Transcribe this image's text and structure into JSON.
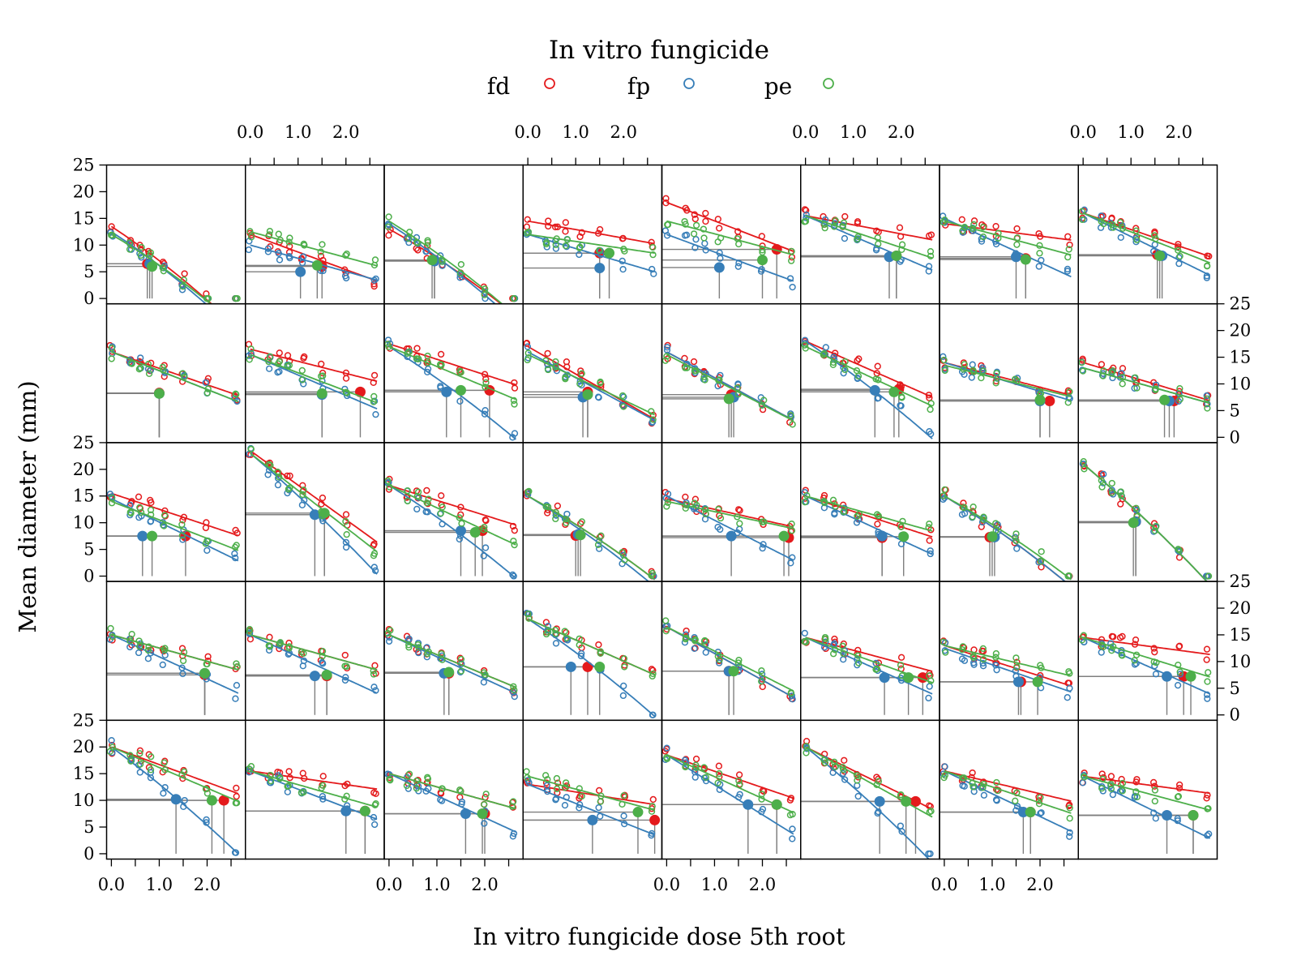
{
  "chart_data": {
    "type": "scatter",
    "layout": "trellis",
    "rows": 5,
    "cols": 8,
    "legend": {
      "title": "In vitro fungicide",
      "placement": "top",
      "entries": [
        {
          "name": "fd",
          "color": "#E41A1C"
        },
        {
          "name": "fp",
          "color": "#377EB8"
        },
        {
          "name": "pe",
          "color": "#4DAF4A"
        }
      ]
    },
    "xlabel": "In vitro fungicide dose 5th root",
    "ylabel": "Mean diameter (mm)",
    "xlim": [
      -0.1,
      2.8
    ],
    "ylim": [
      -1,
      25
    ],
    "x_ticks": [
      0,
      0.5,
      1,
      1.5,
      2,
      2.5
    ],
    "x_tick_labels": [
      "0.0",
      "1.0",
      "2.0"
    ],
    "y_ticks": [
      0,
      5,
      10,
      15,
      20,
      25
    ],
    "y_tick_labels": [
      "0",
      "5",
      "10",
      "15",
      "20",
      "25"
    ],
    "dose_levels": [
      0,
      0.4,
      0.6,
      0.8,
      1.1,
      1.5,
      2.0,
      2.6
    ],
    "panels": [
      {
        "ec": [
          [
            0.75,
            6.5
          ],
          [
            0.8,
            6.5
          ],
          [
            0.85,
            6.0
          ]
        ],
        "curves": [
          [
            13.5,
            -0.8
          ],
          [
            12.5,
            -0.85
          ],
          [
            12.0,
            -0.8
          ]
        ]
      },
      {
        "ec": [
          [
            1.5,
            6.0
          ],
          [
            1.05,
            5.0
          ],
          [
            1.4,
            6.2
          ]
        ],
        "curves": [
          [
            12.0,
            -0.5
          ],
          [
            10.0,
            -0.45
          ],
          [
            12.5,
            -0.35
          ]
        ]
      },
      {
        "ec": [
          [
            0.95,
            7.2
          ],
          [
            0.95,
            7.0
          ],
          [
            0.9,
            7.2
          ]
        ],
        "curves": [
          [
            13.0,
            -0.7
          ],
          [
            14.0,
            -0.75
          ],
          [
            14.5,
            -0.7
          ]
        ]
      },
      {
        "ec": [
          [
            1.5,
            8.5
          ],
          [
            1.5,
            5.7
          ],
          [
            1.7,
            8.5
          ]
        ],
        "curves": [
          [
            14.5,
            -0.2
          ],
          [
            12.0,
            -0.4
          ],
          [
            12.0,
            -0.2
          ]
        ]
      },
      {
        "ec": [
          [
            2.3,
            9.2
          ],
          [
            1.1,
            5.8
          ],
          [
            2.0,
            7.2
          ]
        ],
        "curves": [
          [
            18.0,
            -0.35
          ],
          [
            12.0,
            -0.5
          ],
          [
            14.5,
            -0.3
          ]
        ]
      },
      {
        "ec": [
          [
            1.9,
            8.0
          ],
          [
            1.75,
            7.8
          ],
          [
            1.9,
            8.0
          ]
        ],
        "curves": [
          [
            15.5,
            -0.2
          ],
          [
            15.5,
            -0.45
          ],
          [
            15.5,
            -0.35
          ]
        ]
      },
      {
        "ec": [
          [
            1.7,
            7.5
          ],
          [
            1.5,
            7.8
          ],
          [
            1.7,
            7.3
          ]
        ],
        "curves": [
          [
            14.0,
            -0.15
          ],
          [
            15.0,
            -0.5
          ],
          [
            14.5,
            -0.3
          ]
        ]
      },
      {
        "ec": [
          [
            1.55,
            8.2
          ],
          [
            1.65,
            8.0
          ],
          [
            1.6,
            8.0
          ]
        ],
        "curves": [
          [
            16.0,
            -0.35
          ],
          [
            16.0,
            -0.5
          ],
          [
            16.0,
            -0.4
          ]
        ]
      },
      {
        "ec": [
          [
            1.0,
            8.3
          ],
          [
            1.0,
            8.2
          ],
          [
            1.0,
            8.2
          ]
        ],
        "curves": [
          [
            16.0,
            -0.35
          ],
          [
            16.0,
            -0.4
          ],
          [
            16.0,
            -0.4
          ]
        ]
      },
      {
        "ec": [
          [
            2.3,
            8.5
          ],
          [
            1.5,
            8.0
          ],
          [
            1.5,
            8.2
          ]
        ],
        "curves": [
          [
            16.5,
            -0.25
          ],
          [
            15.5,
            -0.45
          ],
          [
            15.5,
            -0.4
          ]
        ]
      },
      {
        "ec": [
          [
            2.1,
            8.8
          ],
          [
            1.2,
            8.5
          ],
          [
            1.5,
            8.8
          ]
        ],
        "curves": [
          [
            17.5,
            -0.3
          ],
          [
            17.0,
            -0.6
          ],
          [
            17.0,
            -0.4
          ]
        ]
      },
      {
        "ec": [
          [
            1.25,
            8.5
          ],
          [
            1.15,
            7.5
          ],
          [
            1.25,
            8.0
          ]
        ],
        "curves": [
          [
            17.0,
            -0.55
          ],
          [
            16.0,
            -0.55
          ],
          [
            15.5,
            -0.5
          ]
        ]
      },
      {
        "ec": [
          [
            1.35,
            8.0
          ],
          [
            1.4,
            7.5
          ],
          [
            1.3,
            7.2
          ]
        ],
        "curves": [
          [
            16.0,
            -0.55
          ],
          [
            16.0,
            -0.55
          ],
          [
            15.5,
            -0.55
          ]
        ]
      },
      {
        "ec": [
          [
            1.95,
            9.0
          ],
          [
            1.45,
            8.8
          ],
          [
            1.85,
            8.5
          ]
        ],
        "curves": [
          [
            18.0,
            -0.4
          ],
          [
            18.0,
            -0.6
          ],
          [
            17.0,
            -0.45
          ]
        ]
      },
      {
        "ec": [
          [
            2.2,
            6.8
          ],
          [
            2.0,
            6.8
          ],
          [
            2.0,
            7.0
          ]
        ],
        "curves": [
          [
            14.0,
            -0.3
          ],
          [
            14.0,
            -0.35
          ],
          [
            13.5,
            -0.3
          ]
        ]
      },
      {
        "ec": [
          [
            1.9,
            6.8
          ],
          [
            1.8,
            6.8
          ],
          [
            1.7,
            7.0
          ]
        ],
        "curves": [
          [
            14.0,
            -0.35
          ],
          [
            13.0,
            -0.35
          ],
          [
            13.0,
            -0.35
          ]
        ]
      },
      {
        "ec": [
          [
            1.55,
            7.5
          ],
          [
            0.65,
            7.5
          ],
          [
            0.85,
            7.5
          ]
        ],
        "curves": [
          [
            15.5,
            -0.35
          ],
          [
            14.5,
            -0.55
          ],
          [
            14.0,
            -0.45
          ]
        ]
      },
      {
        "ec": [
          [
            1.55,
            11.5
          ],
          [
            1.35,
            11.5
          ],
          [
            1.55,
            11.8
          ]
        ],
        "curves": [
          [
            23.5,
            -0.5
          ],
          [
            23.0,
            -0.6
          ],
          [
            23.0,
            -0.55
          ]
        ]
      },
      {
        "ec": [
          [
            1.95,
            8.5
          ],
          [
            1.5,
            8.5
          ],
          [
            1.8,
            8.2
          ]
        ],
        "curves": [
          [
            17.0,
            -0.3
          ],
          [
            17.0,
            -0.6
          ],
          [
            17.0,
            -0.45
          ]
        ]
      },
      {
        "ec": [
          [
            1.0,
            7.6
          ],
          [
            1.05,
            7.8
          ],
          [
            1.1,
            7.7
          ]
        ],
        "curves": [
          [
            15.0,
            -0.6
          ],
          [
            15.0,
            -0.65
          ],
          [
            15.0,
            -0.6
          ]
        ]
      },
      {
        "ec": [
          [
            2.55,
            7.2
          ],
          [
            1.35,
            7.5
          ],
          [
            2.45,
            7.5
          ]
        ],
        "curves": [
          [
            14.5,
            -0.25
          ],
          [
            15.0,
            -0.55
          ],
          [
            14.0,
            -0.25
          ]
        ]
      },
      {
        "ec": [
          [
            1.6,
            7.2
          ],
          [
            1.6,
            7.5
          ],
          [
            2.05,
            7.4
          ]
        ],
        "curves": [
          [
            15.0,
            -0.35
          ],
          [
            15.0,
            -0.5
          ],
          [
            15.0,
            -0.3
          ]
        ]
      },
      {
        "ec": [
          [
            0.95,
            7.3
          ],
          [
            1.05,
            7.3
          ],
          [
            1.0,
            7.4
          ]
        ],
        "curves": [
          [
            15.0,
            -0.65
          ],
          [
            15.0,
            -0.65
          ],
          [
            15.0,
            -0.6
          ]
        ]
      },
      {
        "ec": [
          [
            1.1,
            10.2
          ],
          [
            1.1,
            10.2
          ],
          [
            1.05,
            10.0
          ]
        ],
        "curves": [
          [
            21.0,
            -0.65
          ],
          [
            21.0,
            -0.65
          ],
          [
            21.0,
            -0.65
          ]
        ]
      },
      {
        "ec": [
          [
            1.95,
            7.5
          ],
          [
            1.95,
            7.8
          ],
          [
            1.95,
            7.8
          ]
        ],
        "curves": [
          [
            15.0,
            -0.3
          ],
          [
            15.0,
            -0.5
          ],
          [
            15.0,
            -0.3
          ]
        ]
      },
      {
        "ec": [
          [
            1.6,
            7.3
          ],
          [
            1.35,
            7.3
          ],
          [
            1.6,
            7.5
          ]
        ],
        "curves": [
          [
            15.0,
            -0.3
          ],
          [
            15.0,
            -0.5
          ],
          [
            15.0,
            -0.3
          ]
        ]
      },
      {
        "ec": [
          [
            1.25,
            7.8
          ],
          [
            1.15,
            7.8
          ],
          [
            1.25,
            8.0
          ]
        ],
        "curves": [
          [
            15.0,
            -0.45
          ],
          [
            15.0,
            -0.5
          ],
          [
            15.0,
            -0.45
          ]
        ]
      },
      {
        "ec": [
          [
            1.25,
            9.0
          ],
          [
            0.9,
            9.0
          ],
          [
            1.5,
            9.0
          ]
        ],
        "curves": [
          [
            18.0,
            -0.4
          ],
          [
            18.0,
            -0.6
          ],
          [
            18.0,
            -0.4
          ]
        ]
      },
      {
        "ec": [
          [
            1.3,
            8.2
          ],
          [
            1.3,
            8.2
          ],
          [
            1.4,
            8.2
          ]
        ],
        "curves": [
          [
            16.5,
            -0.55
          ],
          [
            16.5,
            -0.55
          ],
          [
            16.5,
            -0.5
          ]
        ]
      },
      {
        "ec": [
          [
            2.45,
            7.0
          ],
          [
            1.65,
            7.0
          ],
          [
            2.15,
            7.0
          ]
        ],
        "curves": [
          [
            14.5,
            -0.3
          ],
          [
            14.5,
            -0.5
          ],
          [
            14.5,
            -0.4
          ]
        ]
      },
      {
        "ec": [
          [
            1.6,
            6.2
          ],
          [
            1.55,
            6.2
          ],
          [
            1.95,
            6.2
          ]
        ],
        "curves": [
          [
            13.0,
            -0.4
          ],
          [
            12.5,
            -0.45
          ],
          [
            13.0,
            -0.3
          ]
        ]
      },
      {
        "ec": [
          [
            2.1,
            7.2
          ],
          [
            1.75,
            7.2
          ],
          [
            2.25,
            7.2
          ]
        ],
        "curves": [
          [
            14.5,
            -0.15
          ],
          [
            14.5,
            -0.5
          ],
          [
            14.5,
            -0.35
          ]
        ]
      },
      {
        "ec": [
          [
            2.35,
            10.0
          ],
          [
            1.35,
            10.2
          ],
          [
            2.1,
            10.0
          ]
        ],
        "curves": [
          [
            20.0,
            -0.3
          ],
          [
            20.0,
            -0.6
          ],
          [
            20.0,
            -0.35
          ]
        ]
      },
      {
        "ec": [
          [
            2.4,
            8.0
          ],
          [
            2.0,
            8.0
          ],
          [
            2.4,
            8.0
          ]
        ],
        "curves": [
          [
            15.5,
            -0.15
          ],
          [
            15.5,
            -0.4
          ],
          [
            15.5,
            -0.3
          ]
        ]
      },
      {
        "ec": [
          [
            2.0,
            7.5
          ],
          [
            1.6,
            7.5
          ],
          [
            1.95,
            7.5
          ]
        ],
        "curves": [
          [
            15.0,
            -0.3
          ],
          [
            15.0,
            -0.5
          ],
          [
            15.0,
            -0.3
          ]
        ]
      },
      {
        "ec": [
          [
            2.65,
            6.3
          ],
          [
            1.35,
            6.3
          ],
          [
            2.3,
            7.8
          ]
        ],
        "curves": [
          [
            13.0,
            -0.2
          ],
          [
            13.0,
            -0.5
          ],
          [
            14.5,
            -0.3
          ]
        ]
      },
      {
        "ec": [
          [
            2.3,
            9.2
          ],
          [
            1.7,
            9.2
          ],
          [
            2.3,
            9.2
          ]
        ],
        "curves": [
          [
            18.5,
            -0.3
          ],
          [
            18.5,
            -0.55
          ],
          [
            18.5,
            -0.4
          ]
        ]
      },
      {
        "ec": [
          [
            2.3,
            9.8
          ],
          [
            1.55,
            9.8
          ],
          [
            2.1,
            9.8
          ]
        ],
        "curves": [
          [
            20.0,
            -0.4
          ],
          [
            20.0,
            -0.65
          ],
          [
            20.0,
            -0.45
          ]
        ]
      },
      {
        "ec": [
          [
            1.8,
            7.8
          ],
          [
            1.65,
            7.8
          ],
          [
            1.8,
            7.8
          ]
        ],
        "curves": [
          [
            15.5,
            -0.25
          ],
          [
            15.5,
            -0.5
          ],
          [
            15.5,
            -0.35
          ]
        ]
      },
      {
        "ec": [
          [
            2.3,
            7.2
          ],
          [
            1.75,
            7.2
          ],
          [
            2.3,
            7.2
          ]
        ],
        "curves": [
          [
            14.5,
            -0.15
          ],
          [
            14.5,
            -0.55
          ],
          [
            14.5,
            -0.3
          ]
        ]
      }
    ]
  }
}
